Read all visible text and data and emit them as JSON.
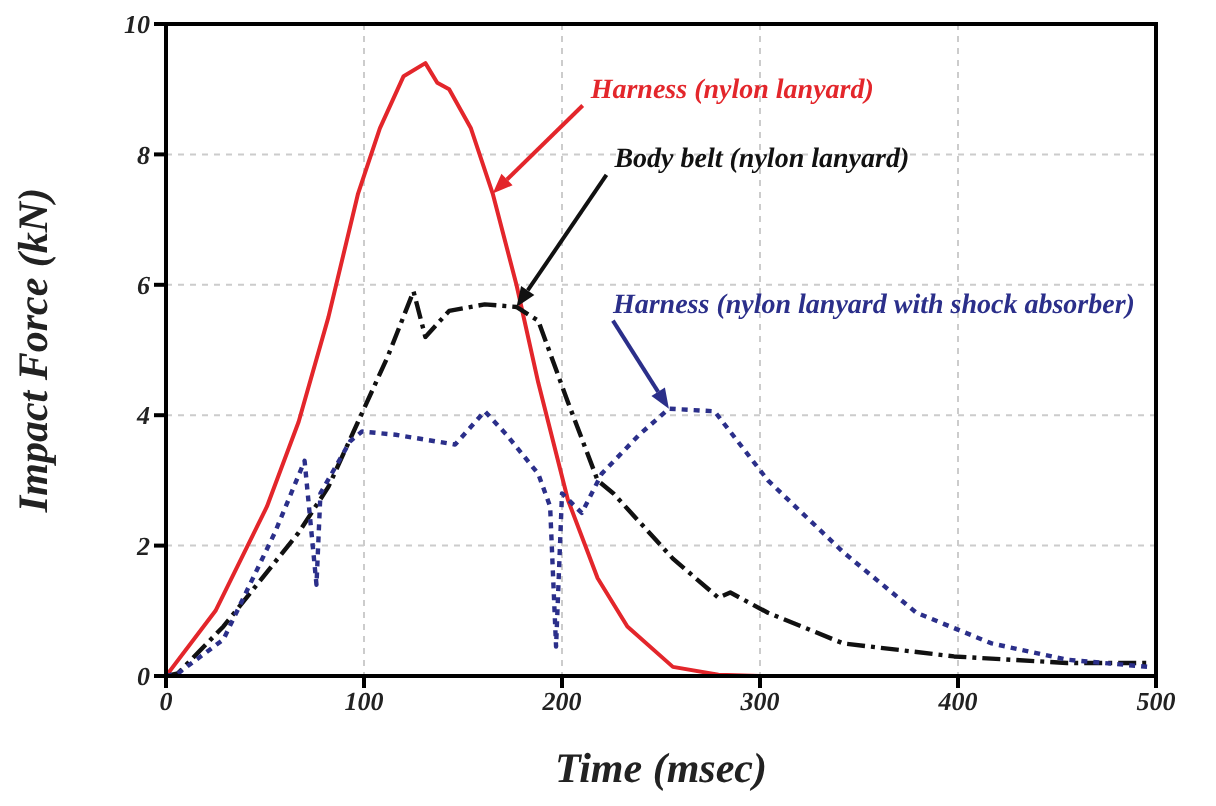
{
  "chart_data": {
    "type": "line",
    "xlabel": "Time (msec)",
    "ylabel": "Impact Force (kN)",
    "xlim": [
      0,
      500
    ],
    "ylim": [
      0,
      10
    ],
    "xticks": [
      0,
      100,
      200,
      300,
      400,
      500
    ],
    "yticks": [
      0,
      2,
      4,
      6,
      8,
      10
    ],
    "grid": true,
    "series": [
      {
        "name": "Harness (nylon lanyard)",
        "color": "#e3262b",
        "line_style": "solid",
        "x": [
          0,
          25,
          51,
          67,
          82,
          97,
          108,
          120,
          131,
          137,
          143,
          154,
          165,
          177,
          188,
          203,
          218,
          233,
          256,
          279,
          300,
          400,
          500
        ],
        "values": [
          0,
          1.0,
          2.6,
          3.9,
          5.5,
          7.4,
          8.4,
          9.2,
          9.4,
          9.1,
          9.0,
          8.4,
          7.4,
          6.0,
          4.5,
          2.7,
          1.5,
          0.76,
          0.14,
          0.02,
          0,
          0,
          0
        ]
      },
      {
        "name": "Body belt (nylon lanyard)",
        "color": "#111111",
        "line_style": "dashed",
        "x": [
          0,
          6,
          29,
          67,
          82,
          97,
          112,
          125,
          131,
          143,
          161,
          177,
          188,
          203,
          218,
          226,
          247,
          256,
          279,
          285,
          304,
          342,
          398,
          455,
          496
        ],
        "values": [
          0,
          0.04,
          0.76,
          2.2,
          2.9,
          3.9,
          4.9,
          5.9,
          5.2,
          5.6,
          5.7,
          5.66,
          5.45,
          4.2,
          3.0,
          2.8,
          2.1,
          1.8,
          1.2,
          1.28,
          0.97,
          0.5,
          0.3,
          0.2,
          0.2
        ]
      },
      {
        "name": "Harness (nylon lanyard with shock absorber)",
        "color": "#2b2f8a",
        "line_style": "dotted",
        "x": [
          0,
          6,
          29,
          55,
          70,
          76,
          78,
          93,
          99,
          116,
          146,
          161,
          172,
          188,
          194,
          197,
          200,
          210,
          220,
          239,
          254,
          277,
          304,
          342,
          379,
          417,
          455,
          496
        ],
        "values": [
          0,
          0.04,
          0.56,
          2.2,
          3.3,
          1.4,
          2.8,
          3.6,
          3.75,
          3.7,
          3.55,
          4.06,
          3.7,
          3.1,
          2.6,
          0.45,
          2.8,
          2.5,
          3.1,
          3.7,
          4.1,
          4.06,
          3.0,
          1.9,
          0.97,
          0.5,
          0.25,
          0.14
        ]
      }
    ]
  }
}
